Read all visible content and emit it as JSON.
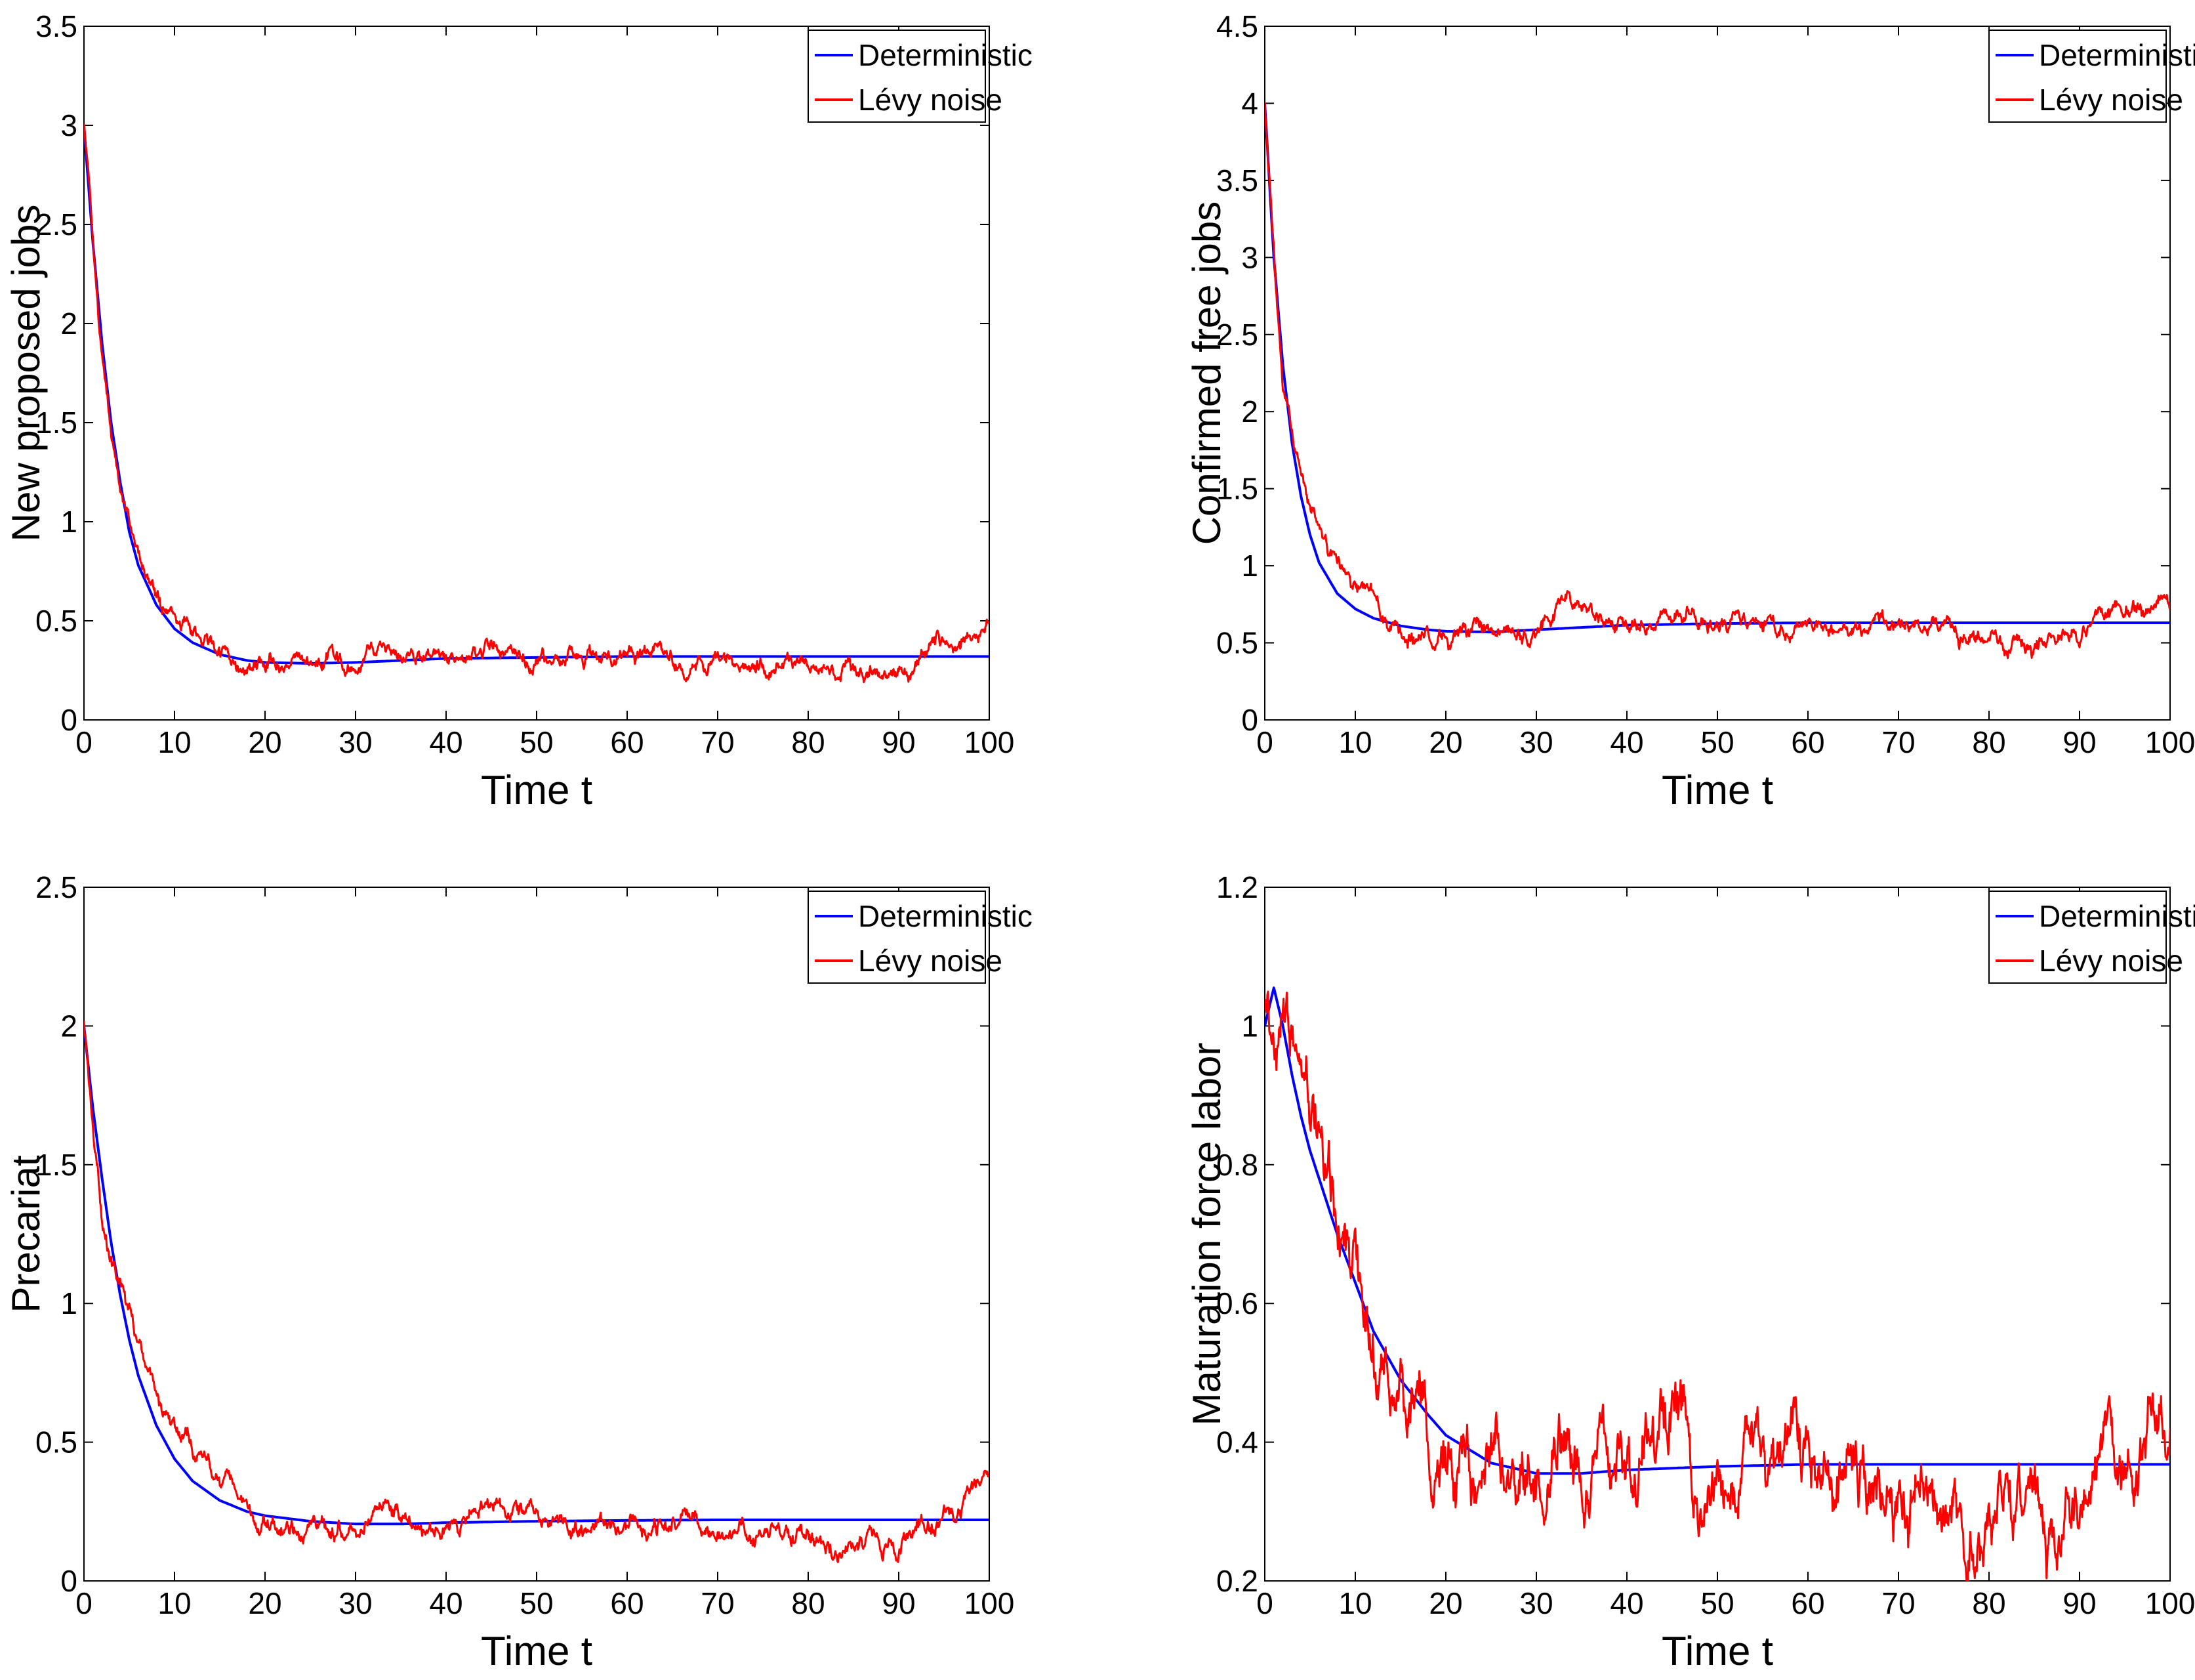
{
  "colors": {
    "deterministic": "#0000ff",
    "levy": "#ff0000",
    "axis": "#000000"
  },
  "chart_data": [
    {
      "type": "line",
      "ylabel": "New proposed jobs",
      "xlabel": "Time t",
      "xlim": [
        0,
        100
      ],
      "ylim": [
        0,
        3.5
      ],
      "xticks": [
        "0",
        "10",
        "20",
        "30",
        "40",
        "50",
        "60",
        "70",
        "80",
        "90",
        "100"
      ],
      "yticks": [
        "0",
        "0.5",
        "1",
        "1.5",
        "2",
        "2.5",
        "3",
        "3.5"
      ],
      "legend": [
        "Deterministic",
        "Lévy noise"
      ],
      "series": [
        {
          "name": "Deterministic",
          "x": [
            0,
            1,
            2,
            3,
            4,
            5,
            6,
            8,
            10,
            12,
            15,
            18,
            20,
            25,
            30,
            35,
            40,
            50,
            60,
            70,
            80,
            90,
            100
          ],
          "values": [
            3.0,
            2.4,
            1.9,
            1.5,
            1.2,
            0.95,
            0.78,
            0.58,
            0.46,
            0.39,
            0.33,
            0.3,
            0.29,
            0.285,
            0.29,
            0.3,
            0.31,
            0.315,
            0.32,
            0.32,
            0.32,
            0.32,
            0.32
          ]
        },
        {
          "name": "Lévy noise",
          "x": [
            0,
            2,
            4,
            6,
            8,
            10,
            15,
            20,
            25,
            30,
            33,
            35,
            40,
            45,
            50,
            55,
            60,
            70,
            80,
            85,
            90,
            93,
            97,
            100
          ],
          "values": [
            3.0,
            1.8,
            1.15,
            0.8,
            0.62,
            0.5,
            0.36,
            0.27,
            0.26,
            0.28,
            0.38,
            0.34,
            0.3,
            0.37,
            0.31,
            0.3,
            0.32,
            0.3,
            0.27,
            0.23,
            0.25,
            0.36,
            0.4,
            0.45
          ],
          "noise": 0.022
        }
      ]
    },
    {
      "type": "line",
      "ylabel": "Confirmed free jobs",
      "xlabel": "Time t",
      "xlim": [
        0,
        100
      ],
      "ylim": [
        0,
        4.5
      ],
      "xticks": [
        "0",
        "10",
        "20",
        "30",
        "40",
        "50",
        "60",
        "70",
        "80",
        "90",
        "100"
      ],
      "yticks": [
        "0",
        "0.5",
        "1",
        "1.5",
        "2",
        "2.5",
        "3",
        "3.5",
        "4",
        "4.5"
      ],
      "legend": [
        "Deterministic",
        "Lévy noise"
      ],
      "series": [
        {
          "name": "Deterministic",
          "x": [
            0,
            1,
            2,
            3,
            4,
            5,
            6,
            8,
            10,
            12,
            15,
            18,
            20,
            25,
            30,
            35,
            40,
            50,
            60,
            70,
            80,
            90,
            100
          ],
          "values": [
            4.0,
            3.0,
            2.3,
            1.8,
            1.45,
            1.2,
            1.02,
            0.82,
            0.72,
            0.66,
            0.61,
            0.585,
            0.575,
            0.57,
            0.585,
            0.6,
            0.615,
            0.625,
            0.63,
            0.63,
            0.63,
            0.63,
            0.63
          ]
        },
        {
          "name": "Lévy noise",
          "x": [
            0,
            2,
            4,
            6,
            8,
            10,
            15,
            20,
            25,
            30,
            33,
            35,
            40,
            45,
            50,
            55,
            60,
            70,
            80,
            85,
            90,
            93,
            97,
            100
          ],
          "values": [
            4.0,
            2.1,
            1.5,
            1.15,
            0.95,
            0.8,
            0.6,
            0.52,
            0.55,
            0.58,
            0.75,
            0.68,
            0.6,
            0.72,
            0.62,
            0.6,
            0.64,
            0.6,
            0.56,
            0.5,
            0.55,
            0.7,
            0.75,
            0.82
          ],
          "noise": 0.03
        }
      ]
    },
    {
      "type": "line",
      "ylabel": "Precariat",
      "xlabel": "Time t",
      "xlim": [
        0,
        100
      ],
      "ylim": [
        0,
        2.5
      ],
      "xticks": [
        "0",
        "10",
        "20",
        "30",
        "40",
        "50",
        "60",
        "70",
        "80",
        "90",
        "100"
      ],
      "yticks": [
        "0",
        "0.5",
        "1",
        "1.5",
        "2",
        "2.5"
      ],
      "legend": [
        "Deterministic",
        "Lévy noise"
      ],
      "series": [
        {
          "name": "Deterministic",
          "x": [
            0,
            1,
            2,
            3,
            4,
            5,
            6,
            8,
            10,
            12,
            15,
            18,
            20,
            25,
            30,
            35,
            40,
            50,
            60,
            70,
            80,
            90,
            100
          ],
          "values": [
            2.0,
            1.7,
            1.45,
            1.22,
            1.03,
            0.87,
            0.74,
            0.56,
            0.44,
            0.36,
            0.29,
            0.25,
            0.235,
            0.215,
            0.205,
            0.205,
            0.21,
            0.215,
            0.218,
            0.22,
            0.22,
            0.22,
            0.22
          ]
        },
        {
          "name": "Lévy noise",
          "x": [
            0,
            2,
            4,
            6,
            8,
            10,
            15,
            20,
            25,
            30,
            33,
            35,
            40,
            45,
            50,
            55,
            60,
            70,
            80,
            85,
            90,
            93,
            97,
            100
          ],
          "values": [
            2.0,
            1.3,
            1.1,
            0.85,
            0.7,
            0.55,
            0.35,
            0.2,
            0.18,
            0.17,
            0.26,
            0.24,
            0.2,
            0.27,
            0.22,
            0.2,
            0.22,
            0.19,
            0.15,
            0.12,
            0.13,
            0.2,
            0.27,
            0.32
          ],
          "noise": 0.018
        }
      ]
    },
    {
      "type": "line",
      "ylabel": "Maturation force labor",
      "xlabel": "Time t",
      "xlim": [
        0,
        100
      ],
      "ylim": [
        0.2,
        1.2
      ],
      "xticks": [
        "0",
        "10",
        "20",
        "30",
        "40",
        "50",
        "60",
        "70",
        "80",
        "90",
        "100"
      ],
      "yticks": [
        "0.2",
        "0.4",
        "0.6",
        "0.8",
        "1",
        "1.2"
      ],
      "legend": [
        "Deterministic",
        "Lévy noise"
      ],
      "series": [
        {
          "name": "Deterministic",
          "x": [
            0,
            1,
            2,
            3,
            4,
            5,
            6,
            8,
            10,
            12,
            15,
            18,
            20,
            25,
            30,
            35,
            40,
            50,
            60,
            70,
            80,
            90,
            100
          ],
          "values": [
            1.0,
            1.055,
            1.0,
            0.93,
            0.87,
            0.82,
            0.78,
            0.7,
            0.63,
            0.56,
            0.49,
            0.44,
            0.41,
            0.37,
            0.355,
            0.355,
            0.36,
            0.365,
            0.368,
            0.368,
            0.368,
            0.368,
            0.368
          ]
        },
        {
          "name": "Lévy noise",
          "x": [
            0,
            2,
            4,
            6,
            8,
            10,
            12,
            15,
            18,
            20,
            25,
            28,
            30,
            33,
            35,
            40,
            45,
            50,
            55,
            60,
            65,
            70,
            75,
            80,
            85,
            88,
            90,
            93,
            97,
            100
          ],
          "values": [
            1.0,
            1.0,
            0.9,
            0.82,
            0.73,
            0.62,
            0.55,
            0.47,
            0.42,
            0.36,
            0.32,
            0.3,
            0.32,
            0.42,
            0.36,
            0.36,
            0.43,
            0.37,
            0.35,
            0.34,
            0.36,
            0.3,
            0.3,
            0.28,
            0.33,
            0.24,
            0.26,
            0.36,
            0.38,
            0.48
          ],
          "noise": 0.025
        }
      ]
    }
  ]
}
